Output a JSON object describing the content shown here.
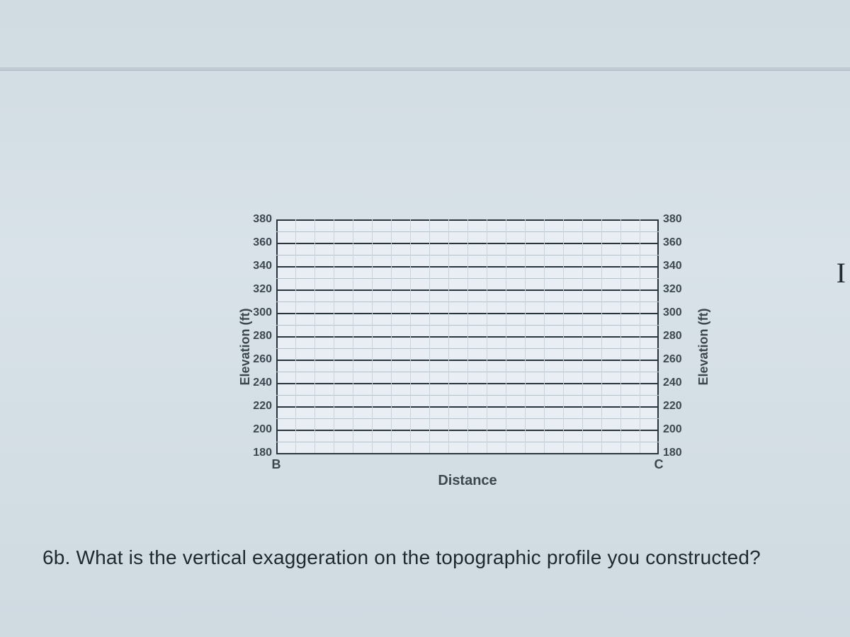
{
  "chart": {
    "type": "line-grid",
    "y_axis_label_left": "Elevation (ft)",
    "y_axis_label_right": "Elevation (ft)",
    "x_axis_label": "Distance",
    "x_endpoint_left": "B",
    "x_endpoint_right": "C",
    "ylim": [
      180,
      380
    ],
    "ytick_step": 20,
    "yticks": [
      380,
      360,
      340,
      320,
      300,
      280,
      260,
      240,
      220,
      200,
      180
    ],
    "plot_background": "#e8eef3",
    "grid_color_minor": "#c9d3db",
    "grid_color_row": "#b6c2cb",
    "axis_color": "#2a343c",
    "tick_font_color": "#3c474f",
    "tick_font_size": 16,
    "label_font_size": 18,
    "xlabel_font_size": 20,
    "minor_x_divisions": 20,
    "minor_y_divisions_between_major": 2
  },
  "question": {
    "number": "6b.",
    "text": "What is the vertical exaggeration on the topographic profile you constructed?"
  },
  "page_background": "#d8e2e8"
}
